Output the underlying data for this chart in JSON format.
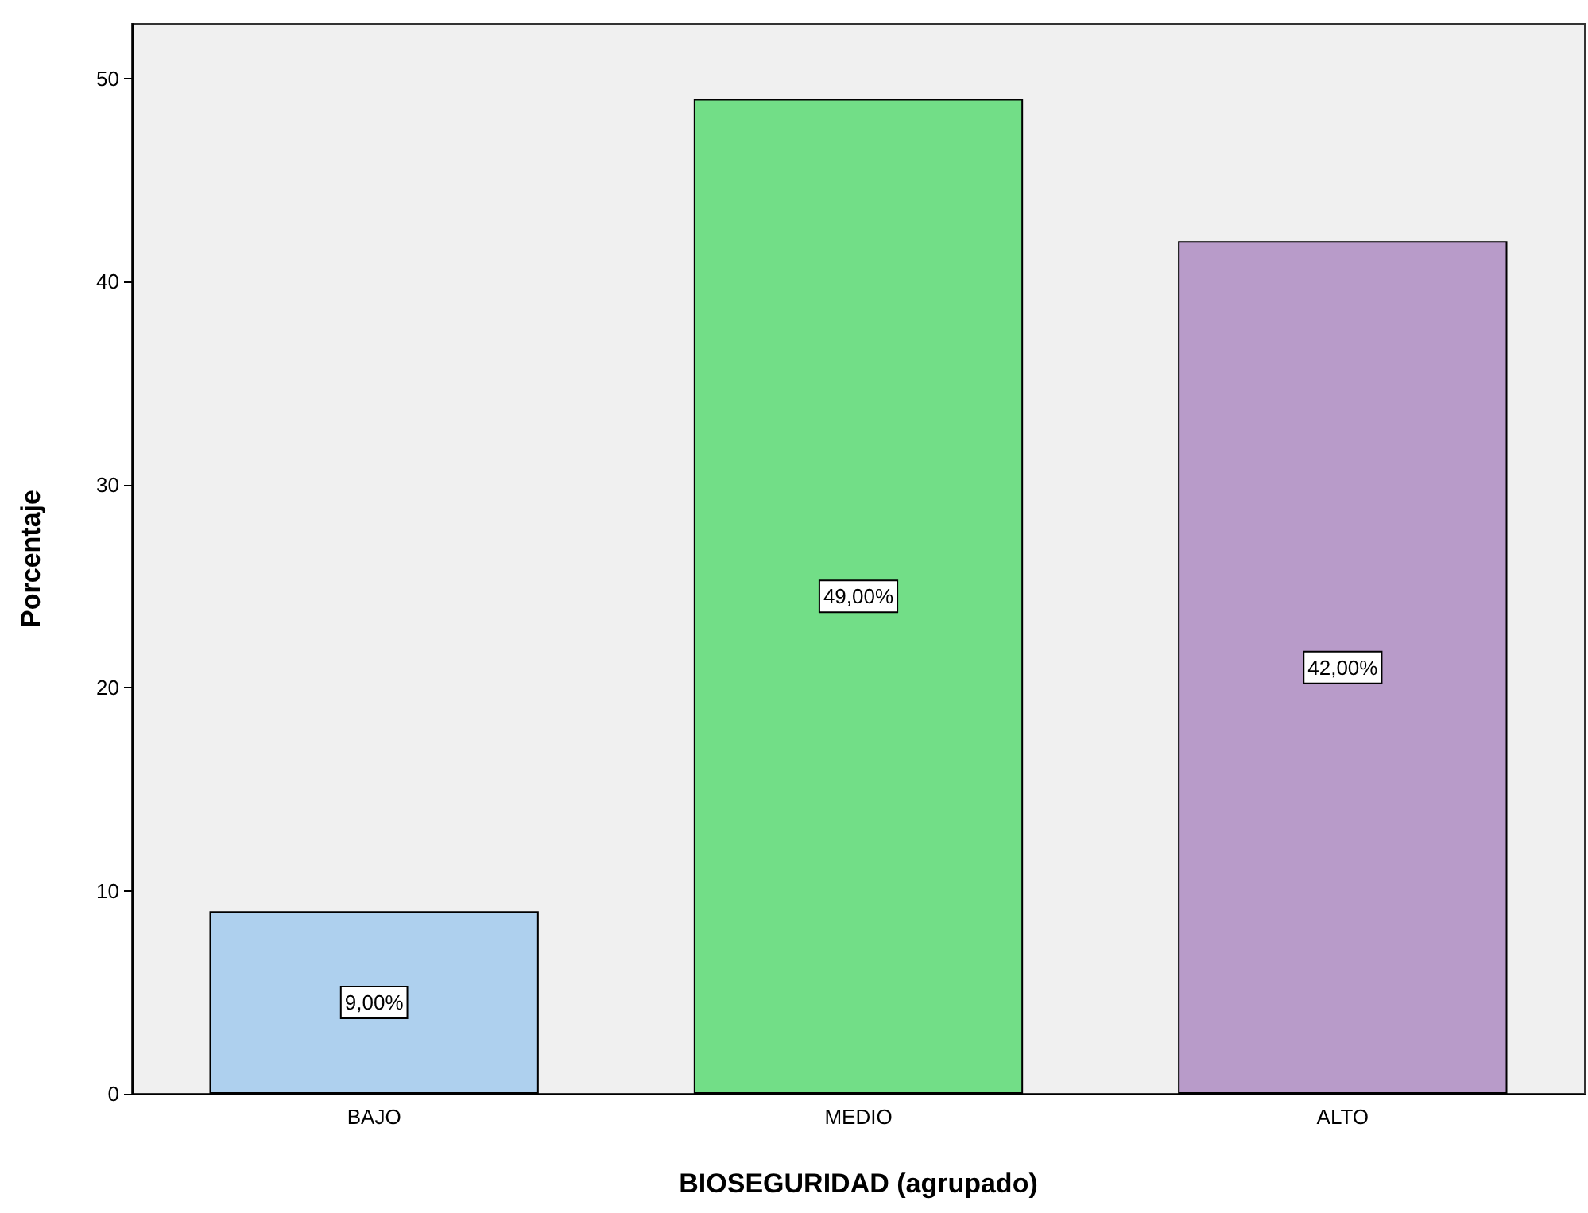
{
  "chart_data": {
    "type": "bar",
    "xlabel": "BIOSEGURIDAD (agrupado)",
    "ylabel": "Porcentaje",
    "categories": [
      "BAJO",
      "MEDIO",
      "ALTO"
    ],
    "values": [
      9,
      49,
      42
    ],
    "colors": [
      "#aed0ee",
      "#72de87",
      "#b89bc9"
    ],
    "value_labels": [
      "9,00%",
      "49,00%",
      "42,00%"
    ],
    "ylim": [
      0,
      52.7
    ],
    "yticks": [
      0,
      10,
      20,
      30,
      40,
      50
    ],
    "grid": false
  }
}
